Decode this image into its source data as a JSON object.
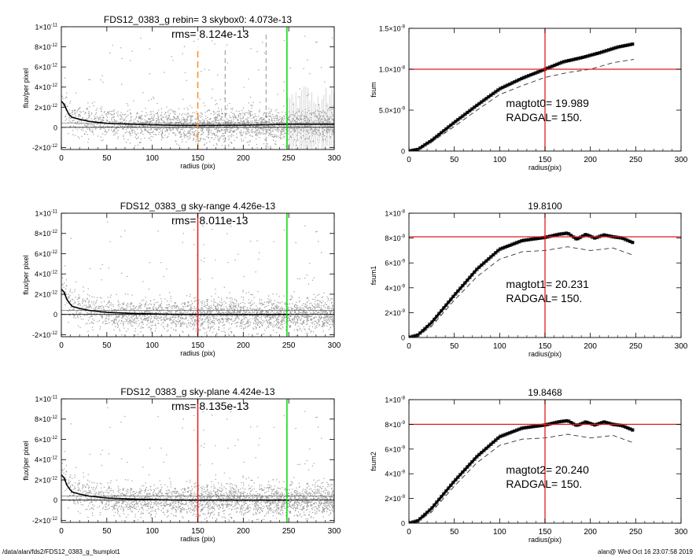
{
  "footer": {
    "left": "/data/alan/fds2/FDS12_0383_g_fsumplot1",
    "right": "alan@  Wed Oct 16 23:07:58 2019"
  },
  "colors": {
    "axis": "#000000",
    "scatter": "#9a9a9a",
    "profile": "#000000",
    "orange": "#ff8c1a",
    "red": "#e41a1c",
    "green": "#00dd00",
    "grey_dashed": "#777777"
  },
  "chart_data": [
    {
      "type": "scatter",
      "panel": "profile-1",
      "title": "FDS12_0383_g rebin= 3    skybox0:  4.073e-13",
      "annotation": "rms= 8.124e-13",
      "xlabel": "radius (pix)",
      "ylabel": "flux/per pixel",
      "xlim": [
        0,
        300
      ],
      "ylim": [
        -2.2e-12,
        1e-11
      ],
      "xticks": [
        "0",
        "50",
        "100",
        "150",
        "200",
        "250",
        "300"
      ],
      "yticks": [
        {
          "v": -2e-12,
          "label": "-2×10",
          "exp": "-12"
        },
        {
          "v": 0,
          "label": "0",
          "exp": ""
        },
        {
          "v": 2e-12,
          "label": "2×10",
          "exp": "-12"
        },
        {
          "v": 4e-12,
          "label": "4×10",
          "exp": "-12"
        },
        {
          "v": 6e-12,
          "label": "6×10",
          "exp": "-12"
        },
        {
          "v": 8e-12,
          "label": "8×10",
          "exp": "-12"
        },
        {
          "v": 1e-11,
          "label": "1×10",
          "exp": "-11"
        }
      ],
      "profile": {
        "x": [
          0,
          3,
          6,
          9,
          12,
          20,
          30,
          50,
          80,
          100,
          130,
          150,
          200,
          250,
          300
        ],
        "y": [
          2.6e-12,
          2.3e-12,
          1.7e-12,
          1.2e-12,
          1e-12,
          8e-13,
          6e-13,
          4e-13,
          3e-13,
          2.5e-13,
          2e-13,
          2e-13,
          2.2e-13,
          3e-13,
          3e-13
        ]
      },
      "vlines": [
        {
          "x": 150,
          "color": "orange",
          "dash": true,
          "ymax": 8e-12
        },
        {
          "x": 180,
          "color": "grey_dashed",
          "dash": true,
          "ymax": 8e-12
        },
        {
          "x": 225,
          "color": "grey_dashed",
          "dash": true,
          "ymax": 9.5e-12
        },
        {
          "x": 248,
          "color": "green",
          "dash": false,
          "ymax": 1e-11
        }
      ],
      "errorbar_region": [
        248,
        300
      ]
    },
    {
      "type": "line",
      "panel": "fsum-1",
      "title": "",
      "ylabel": "fsum",
      "xlabel": "radius(pix)",
      "annotation_lines": [
        "magtot0=  19.989",
        "RADGAL=     150."
      ],
      "xlim": [
        0,
        300
      ],
      "ylim": [
        0,
        1.5e-08
      ],
      "xticks": [
        "0",
        "50",
        "100",
        "150",
        "200",
        "250",
        "300"
      ],
      "yticks": [
        {
          "v": 0,
          "label": "0",
          "exp": ""
        },
        {
          "v": 5e-09,
          "label": "5.0×10",
          "exp": "-9"
        },
        {
          "v": 1e-08,
          "label": "1.0×10",
          "exp": "-8"
        },
        {
          "v": 1.5e-08,
          "label": "1.5×10",
          "exp": "-8"
        }
      ],
      "hline": 1e-08,
      "vline": 150,
      "series": [
        {
          "style": "solid",
          "x": [
            0,
            10,
            25,
            50,
            75,
            100,
            125,
            150,
            170,
            190,
            210,
            230,
            248
          ],
          "y": [
            0,
            2e-10,
            1.3e-09,
            3.5e-09,
            5.6e-09,
            7.6e-09,
            8.9e-09,
            1e-08,
            1.09e-08,
            1.14e-08,
            1.2e-08,
            1.27e-08,
            1.31e-08
          ]
        },
        {
          "style": "dashed",
          "x": [
            0,
            10,
            25,
            50,
            75,
            100,
            125,
            150,
            175,
            200,
            225,
            248
          ],
          "y": [
            0,
            1.5e-10,
            1.1e-09,
            3e-09,
            5e-09,
            6.9e-09,
            8e-09,
            9e-09,
            9.6e-09,
            1e-08,
            1.08e-08,
            1.12e-08
          ]
        }
      ]
    },
    {
      "type": "scatter",
      "panel": "profile-2",
      "title": "FDS12_0383_g sky-range  4.426e-13",
      "annotation": "rms= 8.011e-13",
      "xlabel": "radius (pix)",
      "ylabel": "flux/per pixel",
      "xlim": [
        0,
        300
      ],
      "ylim": [
        -2.2e-12,
        1e-11
      ],
      "xticks": [
        "0",
        "50",
        "100",
        "150",
        "200",
        "250",
        "300"
      ],
      "yticks": [
        {
          "v": -2e-12,
          "label": "-2×10",
          "exp": "-12"
        },
        {
          "v": 0,
          "label": "0",
          "exp": ""
        },
        {
          "v": 2e-12,
          "label": "2×10",
          "exp": "-12"
        },
        {
          "v": 4e-12,
          "label": "4×10",
          "exp": "-12"
        },
        {
          "v": 6e-12,
          "label": "6×10",
          "exp": "-12"
        },
        {
          "v": 8e-12,
          "label": "8×10",
          "exp": "-12"
        },
        {
          "v": 1e-11,
          "label": "1×10",
          "exp": "-11"
        }
      ],
      "profile": {
        "x": [
          0,
          3,
          6,
          9,
          12,
          20,
          30,
          50,
          80,
          100,
          130,
          150,
          200,
          250
        ],
        "y": [
          2.5e-12,
          2.2e-12,
          1.5e-12,
          1.1e-12,
          8e-13,
          6e-13,
          4e-13,
          2e-13,
          1e-13,
          5e-14,
          0,
          0,
          0,
          0
        ]
      },
      "vlines": [
        {
          "x": 150,
          "color": "red",
          "dash": false,
          "ymax": 1e-11
        },
        {
          "x": 248,
          "color": "green",
          "dash": false,
          "ymax": 1e-11
        }
      ],
      "errorbar_region": null
    },
    {
      "type": "line",
      "panel": "fsum-2",
      "title": "19.8100",
      "ylabel": "fsum1",
      "xlabel": "radius(pix)",
      "annotation_lines": [
        "magtot1=  20.231",
        "RADGAL=     150."
      ],
      "xlim": [
        0,
        300
      ],
      "ylim": [
        0,
        1e-08
      ],
      "xticks": [
        "0",
        "50",
        "100",
        "150",
        "200",
        "250",
        "300"
      ],
      "yticks": [
        {
          "v": 0,
          "label": "0",
          "exp": ""
        },
        {
          "v": 2e-09,
          "label": "2×10",
          "exp": "-9"
        },
        {
          "v": 4e-09,
          "label": "4×10",
          "exp": "-9"
        },
        {
          "v": 6e-09,
          "label": "6×10",
          "exp": "-9"
        },
        {
          "v": 8e-09,
          "label": "8×10",
          "exp": "-9"
        },
        {
          "v": 1e-08,
          "label": "1×10",
          "exp": "-8"
        }
      ],
      "hline": 8.1e-09,
      "vline": 150,
      "series": [
        {
          "style": "solid",
          "x": [
            0,
            10,
            25,
            50,
            75,
            100,
            125,
            150,
            165,
            175,
            185,
            195,
            205,
            215,
            225,
            235,
            248
          ],
          "y": [
            0,
            2e-10,
            1.2e-09,
            3.4e-09,
            5.5e-09,
            7.1e-09,
            7.8e-09,
            8.05e-09,
            8.3e-09,
            8.4e-09,
            7.9e-09,
            8.3e-09,
            8e-09,
            8.25e-09,
            8.1e-09,
            8e-09,
            7.6e-09
          ]
        },
        {
          "style": "dashed",
          "x": [
            0,
            10,
            25,
            50,
            75,
            100,
            125,
            150,
            175,
            200,
            225,
            248
          ],
          "y": [
            0,
            1.5e-10,
            9e-10,
            3e-09,
            4.9e-09,
            6.3e-09,
            6.9e-09,
            7e-09,
            7.3e-09,
            7e-09,
            7.2e-09,
            6.6e-09
          ]
        }
      ]
    },
    {
      "type": "scatter",
      "panel": "profile-3",
      "title": "FDS12_0383_g sky-plane  4.424e-13",
      "annotation": "rms= 8.135e-13",
      "xlabel": "radius (pix)",
      "ylabel": "flux/per pixel",
      "xlim": [
        0,
        300
      ],
      "ylim": [
        -2.2e-12,
        1e-11
      ],
      "xticks": [
        "0",
        "50",
        "100",
        "150",
        "200",
        "250",
        "300"
      ],
      "yticks": [
        {
          "v": -2e-12,
          "label": "-2×10",
          "exp": "-12"
        },
        {
          "v": 0,
          "label": "0",
          "exp": ""
        },
        {
          "v": 2e-12,
          "label": "2×10",
          "exp": "-12"
        },
        {
          "v": 4e-12,
          "label": "4×10",
          "exp": "-12"
        },
        {
          "v": 6e-12,
          "label": "6×10",
          "exp": "-12"
        },
        {
          "v": 8e-12,
          "label": "8×10",
          "exp": "-12"
        },
        {
          "v": 1e-11,
          "label": "1×10",
          "exp": "-11"
        }
      ],
      "profile": {
        "x": [
          0,
          3,
          6,
          9,
          12,
          20,
          30,
          50,
          80,
          100,
          130,
          150,
          200,
          250
        ],
        "y": [
          2.5e-12,
          2.2e-12,
          1.5e-12,
          1.1e-12,
          8e-13,
          6e-13,
          4e-13,
          2e-13,
          1e-13,
          5e-14,
          0,
          0,
          0,
          0
        ]
      },
      "vlines": [
        {
          "x": 150,
          "color": "red",
          "dash": false,
          "ymax": 1e-11
        },
        {
          "x": 248,
          "color": "green",
          "dash": false,
          "ymax": 1e-11
        }
      ],
      "errorbar_region": null
    },
    {
      "type": "line",
      "panel": "fsum-3",
      "title": "19.8468",
      "ylabel": "fsum2",
      "xlabel": "radius(pix)",
      "annotation_lines": [
        "magtot2=  20.240",
        "RADGAL=     150."
      ],
      "xlim": [
        0,
        300
      ],
      "ylim": [
        0,
        1e-08
      ],
      "xticks": [
        "0",
        "50",
        "100",
        "150",
        "200",
        "250",
        "300"
      ],
      "yticks": [
        {
          "v": 0,
          "label": "0",
          "exp": ""
        },
        {
          "v": 2e-09,
          "label": "2×10",
          "exp": "-9"
        },
        {
          "v": 4e-09,
          "label": "4×10",
          "exp": "-9"
        },
        {
          "v": 6e-09,
          "label": "6×10",
          "exp": "-9"
        },
        {
          "v": 8e-09,
          "label": "8×10",
          "exp": "-9"
        },
        {
          "v": 1e-08,
          "label": "1×10",
          "exp": "-8"
        }
      ],
      "hline": 8e-09,
      "vline": 150,
      "series": [
        {
          "style": "solid",
          "x": [
            0,
            10,
            25,
            50,
            75,
            100,
            125,
            150,
            165,
            175,
            185,
            195,
            205,
            215,
            225,
            235,
            248
          ],
          "y": [
            0,
            2e-10,
            1.2e-09,
            3.4e-09,
            5.4e-09,
            7e-09,
            7.7e-09,
            7.95e-09,
            8.2e-09,
            8.3e-09,
            7.9e-09,
            8.2e-09,
            7.95e-09,
            8.2e-09,
            8e-09,
            7.9e-09,
            7.5e-09
          ]
        },
        {
          "style": "dashed",
          "x": [
            0,
            10,
            25,
            50,
            75,
            100,
            125,
            150,
            175,
            200,
            225,
            248
          ],
          "y": [
            0,
            1.5e-10,
            9e-10,
            3e-09,
            4.9e-09,
            6.3e-09,
            6.8e-09,
            6.9e-09,
            7.2e-09,
            6.9e-09,
            7.1e-09,
            6.5e-09
          ]
        }
      ]
    }
  ]
}
